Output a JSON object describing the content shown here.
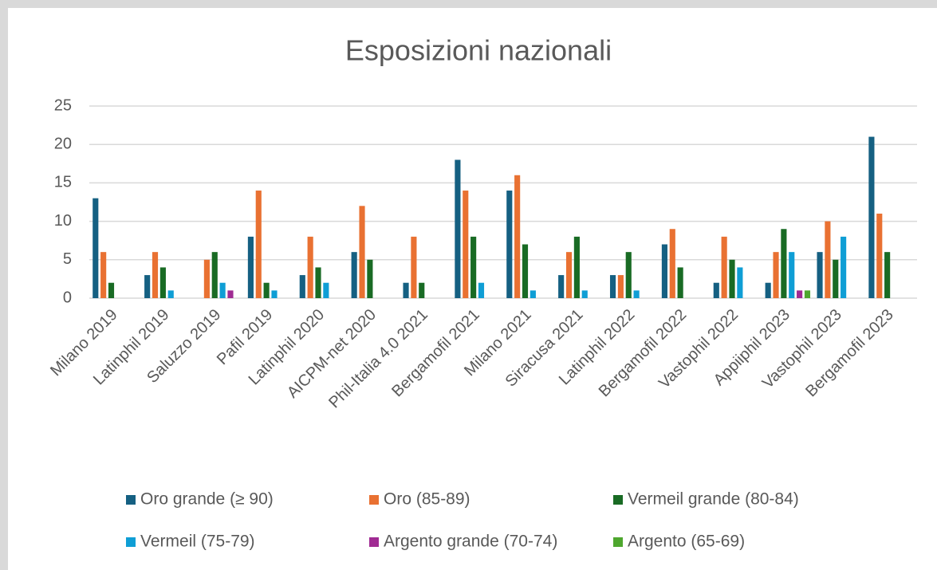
{
  "chart_data": {
    "type": "bar",
    "title": "Esposizioni nazionali",
    "categories": [
      "Milano 2019",
      "Latinphil 2019",
      "Saluzzo 2019",
      "Pafil 2019",
      "Latinphil 2020",
      "AICPM-net 2020",
      "Phil-Italia 4.0 2021",
      "Bergamofil 2021",
      "Milano 2021",
      "Siracusa 2021",
      "Latinphil 2022",
      "Bergamofil 2022",
      "Vastophil 2022",
      "Appiiphil 2023",
      "Vastophil 2023",
      "Bergamofil 2023"
    ],
    "series": [
      {
        "name": "Oro grande (≥ 90)",
        "color": "#156082",
        "values": [
          13,
          3,
          0,
          8,
          3,
          6,
          2,
          18,
          14,
          3,
          3,
          7,
          2,
          2,
          6,
          21
        ]
      },
      {
        "name": "Oro (85-89)",
        "color": "#e97132",
        "values": [
          6,
          6,
          5,
          14,
          8,
          12,
          8,
          14,
          16,
          6,
          3,
          9,
          8,
          6,
          10,
          11
        ]
      },
      {
        "name": "Vermeil grande (80-84)",
        "color": "#196b24",
        "values": [
          2,
          4,
          6,
          2,
          4,
          5,
          2,
          8,
          7,
          8,
          6,
          4,
          5,
          9,
          5,
          6
        ]
      },
      {
        "name": "Vermeil (75-79)",
        "color": "#0f9ed5",
        "values": [
          0,
          1,
          2,
          1,
          2,
          0,
          0,
          2,
          1,
          1,
          1,
          0,
          4,
          6,
          8,
          0
        ]
      },
      {
        "name": "Argento grande (70-74)",
        "color": "#a02b93",
        "values": [
          0,
          0,
          1,
          0,
          0,
          0,
          0,
          0,
          0,
          0,
          0,
          0,
          0,
          1,
          0,
          0
        ]
      },
      {
        "name": "Argento (65-69)",
        "color": "#4ea72e",
        "values": [
          0,
          0,
          0,
          0,
          0,
          0,
          0,
          0,
          0,
          0,
          0,
          0,
          0,
          1,
          0,
          0
        ]
      }
    ],
    "ylim": [
      0,
      25
    ],
    "yticks": [
      0,
      5,
      10,
      15,
      20,
      25
    ],
    "grid": true,
    "legend": "bottom"
  }
}
